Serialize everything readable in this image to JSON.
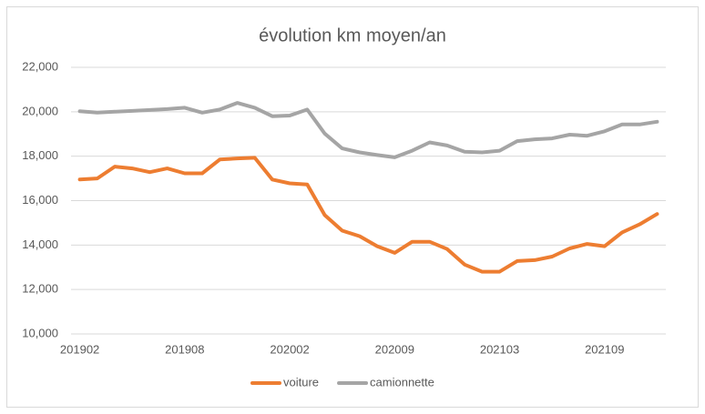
{
  "chart_data": {
    "type": "line",
    "title": "évolution km moyen/an",
    "categories": [
      "201902",
      null,
      null,
      null,
      null,
      null,
      "201908",
      null,
      null,
      null,
      null,
      null,
      "202002",
      null,
      null,
      null,
      null,
      null,
      "202009",
      null,
      null,
      null,
      null,
      null,
      "202103",
      null,
      null,
      null,
      null,
      null,
      "202109",
      null,
      null,
      null
    ],
    "series": [
      {
        "name": "voiture",
        "color": "#ed7d31",
        "values": [
          16950,
          17000,
          17530,
          17450,
          17280,
          17450,
          17230,
          17230,
          17850,
          17900,
          17930,
          16950,
          16780,
          16730,
          15350,
          14650,
          14400,
          13950,
          13650,
          14150,
          14150,
          13820,
          13120,
          12800,
          12800,
          13280,
          13320,
          13480,
          13850,
          14050,
          13950,
          14570,
          14930,
          15400
        ]
      },
      {
        "name": "camionnette",
        "color": "#a5a5a5",
        "values": [
          20020,
          19960,
          20000,
          20040,
          20080,
          20120,
          20180,
          19960,
          20100,
          20400,
          20180,
          19800,
          19830,
          20100,
          19020,
          18350,
          18170,
          18050,
          17950,
          18250,
          18620,
          18480,
          18200,
          18170,
          18250,
          18680,
          18760,
          18800,
          18970,
          18920,
          19120,
          19430,
          19430,
          19550
        ]
      }
    ],
    "ylim": [
      10000,
      22000
    ],
    "yticks": [
      {
        "value": 10000,
        "label": "10,000"
      },
      {
        "value": 12000,
        "label": "12,000"
      },
      {
        "value": 14000,
        "label": "14,000"
      },
      {
        "value": 16000,
        "label": "16,000"
      },
      {
        "value": 18000,
        "label": "18,000"
      },
      {
        "value": 20000,
        "label": "20,000"
      },
      {
        "value": 22000,
        "label": "22,000"
      }
    ],
    "grid": true,
    "legend": "bottom"
  }
}
